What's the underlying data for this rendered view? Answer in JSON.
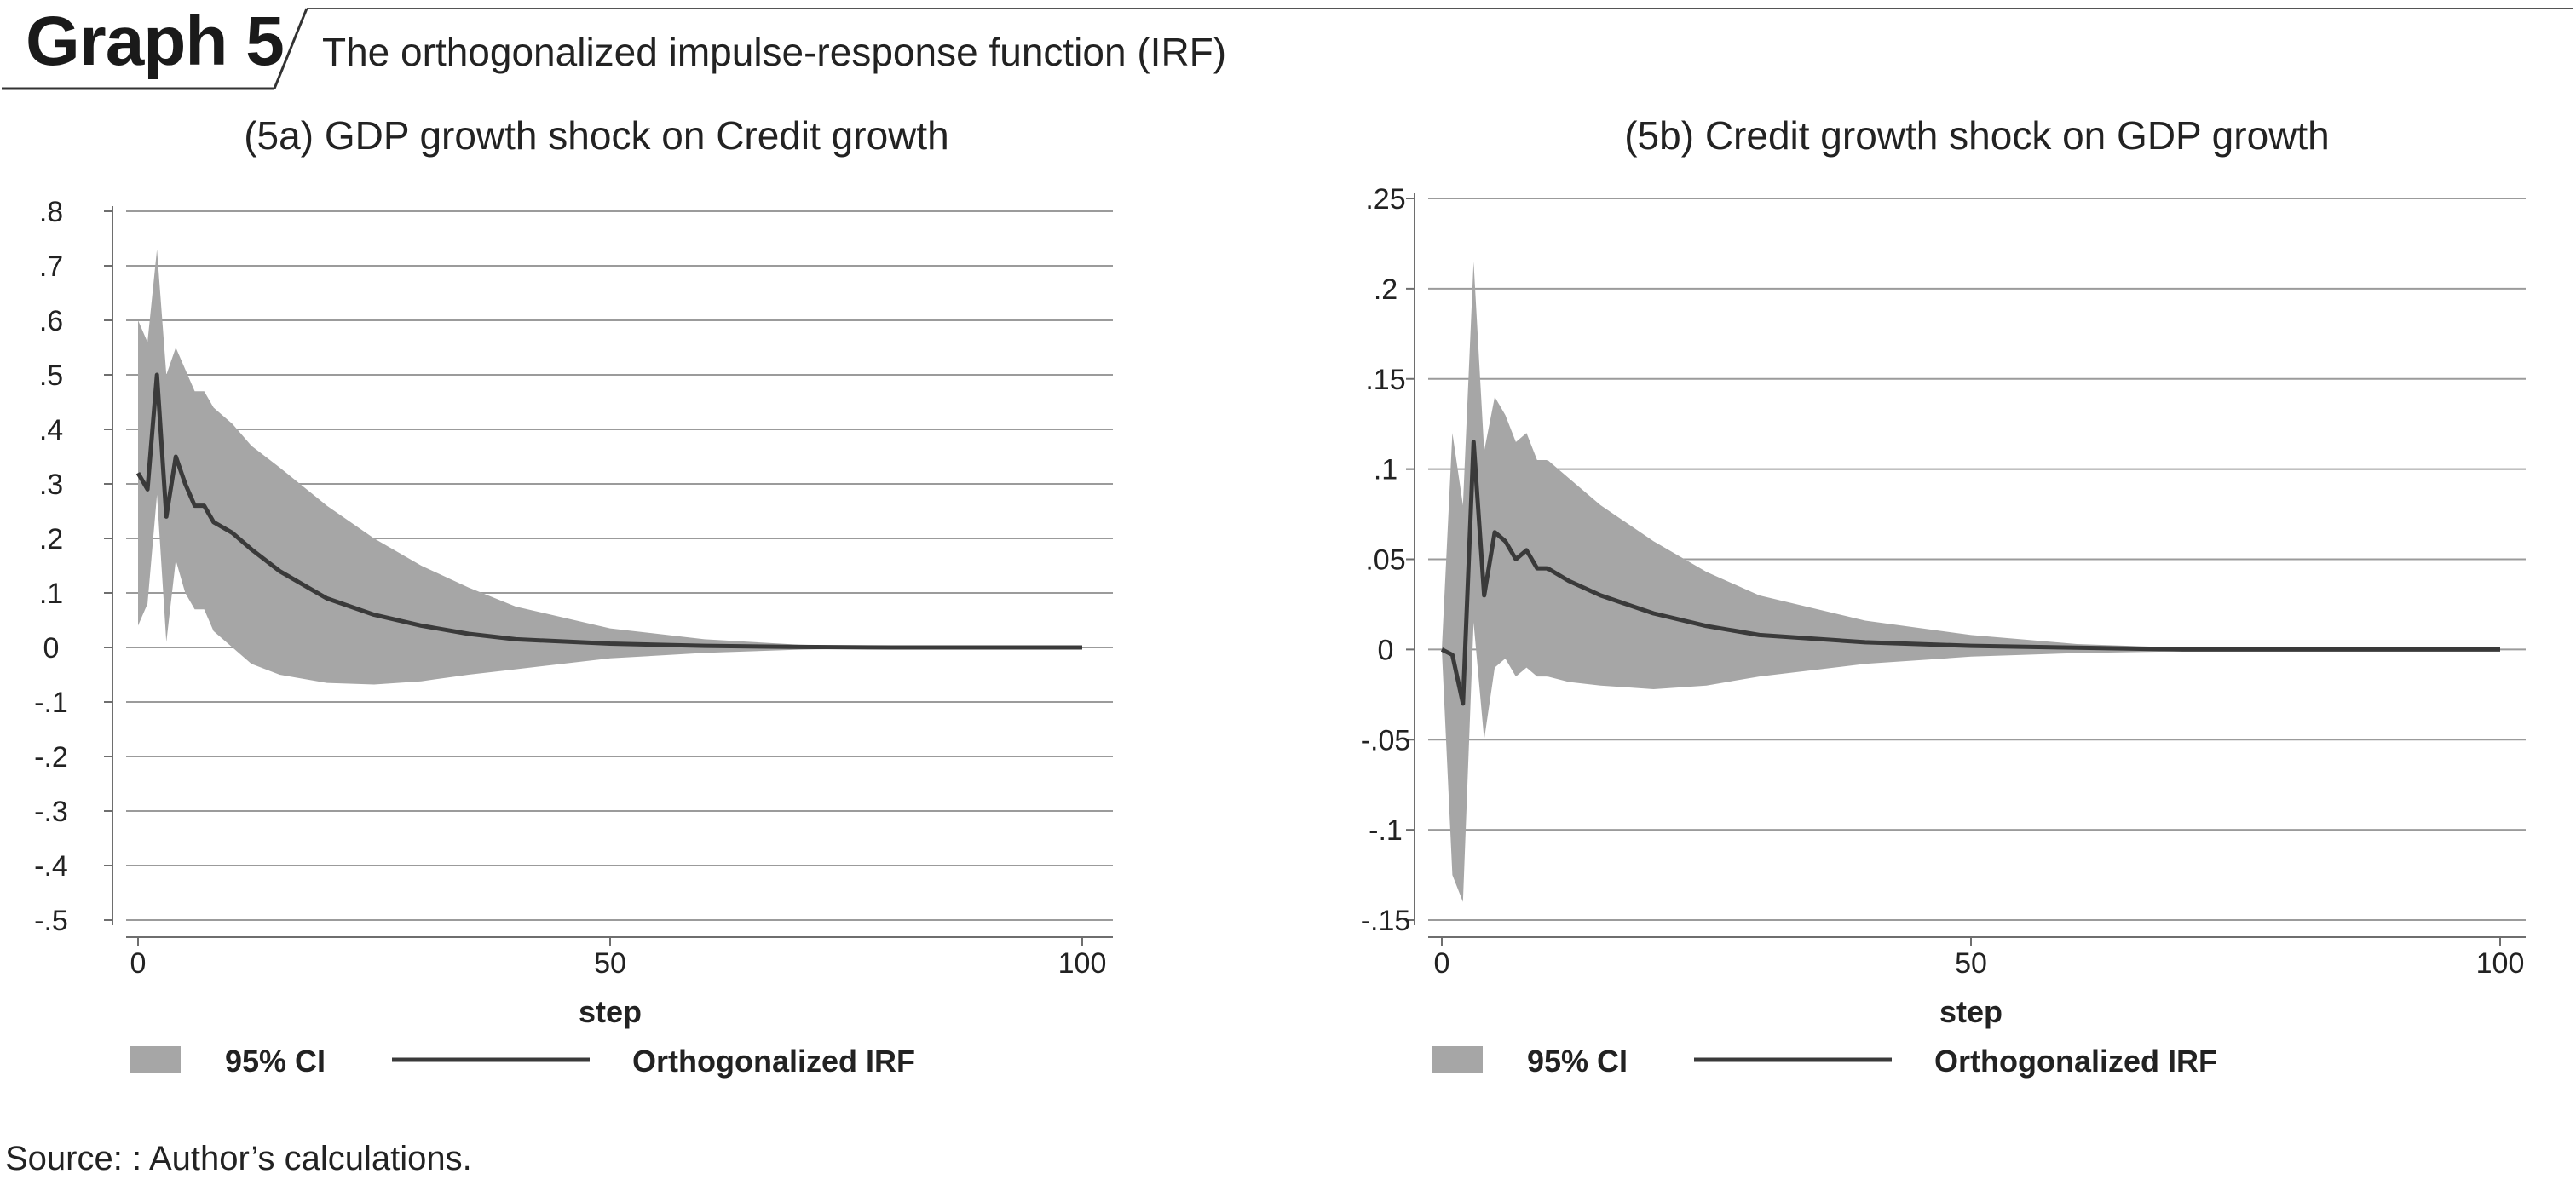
{
  "header": {
    "label": "Graph 5",
    "subtitle": "The orthogonalized impulse-response function (IRF)"
  },
  "source": "Source: : Author’s calculations.",
  "colors": {
    "band": "#a6a6a6",
    "line": "#3a3a3a",
    "grid": "#9b9b9b",
    "axis": "#6e6e6e",
    "text": "#222222"
  },
  "chart_data": [
    {
      "type": "area",
      "title": "(5a) GDP growth shock on Credit growth",
      "xlabel": "step",
      "ylabel": "",
      "xlim": [
        0,
        100
      ],
      "ylim": [
        -0.5,
        0.8
      ],
      "x_ticks": [
        0,
        50,
        100
      ],
      "x_tick_labels": [
        "0",
        "50",
        "100"
      ],
      "y_ticks": [
        -0.5,
        -0.4,
        -0.3,
        -0.2,
        -0.1,
        0,
        0.1,
        0.2,
        0.3,
        0.4,
        0.5,
        0.6,
        0.7,
        0.8
      ],
      "y_tick_labels": [
        "-.5",
        "-.4",
        "-.3",
        "-.2",
        "-.1",
        "0",
        ".1",
        ".2",
        ".3",
        ".4",
        ".5",
        ".6",
        ".7",
        ".8"
      ],
      "grid": true,
      "legend": {
        "position": "bottom",
        "entries": [
          {
            "label": "95% CI",
            "kind": "band"
          },
          {
            "label": "Orthogonalized IRF",
            "kind": "line"
          }
        ]
      },
      "series": [
        {
          "name": "Orthogonalized IRF",
          "kind": "line",
          "x": [
            0,
            1,
            2,
            3,
            4,
            5,
            6,
            7,
            8,
            10,
            12,
            15,
            20,
            25,
            30,
            35,
            40,
            50,
            60,
            70,
            80,
            90,
            100
          ],
          "y": [
            0.32,
            0.29,
            0.5,
            0.24,
            0.35,
            0.3,
            0.26,
            0.26,
            0.23,
            0.21,
            0.18,
            0.14,
            0.09,
            0.06,
            0.04,
            0.025,
            0.015,
            0.007,
            0.003,
            0.001,
            0.0,
            0.0,
            0.0
          ]
        },
        {
          "name": "95% CI",
          "kind": "band",
          "x": [
            0,
            1,
            2,
            3,
            4,
            5,
            6,
            7,
            8,
            10,
            12,
            15,
            20,
            25,
            30,
            35,
            40,
            50,
            60,
            70,
            80,
            90,
            100
          ],
          "upper": [
            0.6,
            0.56,
            0.73,
            0.5,
            0.55,
            0.51,
            0.47,
            0.47,
            0.44,
            0.41,
            0.37,
            0.33,
            0.26,
            0.2,
            0.15,
            0.11,
            0.075,
            0.035,
            0.015,
            0.005,
            0.001,
            0.0,
            0.0
          ],
          "lower": [
            0.04,
            0.08,
            0.28,
            0.01,
            0.16,
            0.1,
            0.07,
            0.07,
            0.03,
            0.0,
            -0.03,
            -0.05,
            -0.065,
            -0.068,
            -0.062,
            -0.05,
            -0.04,
            -0.02,
            -0.01,
            -0.004,
            -0.001,
            0.0,
            0.0
          ]
        }
      ]
    },
    {
      "type": "area",
      "title": "(5b) Credit growth shock on GDP growth",
      "xlabel": "step",
      "ylabel": "",
      "xlim": [
        0,
        100
      ],
      "ylim": [
        -0.15,
        0.25
      ],
      "x_ticks": [
        0,
        50,
        100
      ],
      "x_tick_labels": [
        "0",
        "50",
        "100"
      ],
      "y_ticks": [
        -0.15,
        -0.1,
        -0.05,
        0,
        0.05,
        0.1,
        0.15,
        0.2,
        0.25
      ],
      "y_tick_labels": [
        "-.15",
        "-.1",
        "-.05",
        "0",
        ".05",
        ".1",
        ".15",
        ".2",
        ".25"
      ],
      "grid": true,
      "legend": {
        "position": "bottom",
        "entries": [
          {
            "label": "95% CI",
            "kind": "band"
          },
          {
            "label": "Orthogonalized IRF",
            "kind": "line"
          }
        ]
      },
      "series": [
        {
          "name": "Orthogonalized IRF",
          "kind": "line",
          "x": [
            0,
            1,
            2,
            3,
            4,
            5,
            6,
            7,
            8,
            9,
            10,
            12,
            15,
            20,
            25,
            30,
            40,
            50,
            60,
            70,
            80,
            90,
            100
          ],
          "y": [
            0.0,
            -0.003,
            -0.03,
            0.115,
            0.03,
            0.065,
            0.06,
            0.05,
            0.055,
            0.045,
            0.045,
            0.038,
            0.03,
            0.02,
            0.013,
            0.008,
            0.004,
            0.002,
            0.001,
            0.0,
            0.0,
            0.0,
            0.0
          ]
        },
        {
          "name": "95% CI",
          "kind": "band",
          "x": [
            0,
            1,
            2,
            3,
            4,
            5,
            6,
            7,
            8,
            9,
            10,
            12,
            15,
            20,
            25,
            30,
            40,
            50,
            60,
            70,
            80,
            90,
            100
          ],
          "upper": [
            0.0,
            0.12,
            0.08,
            0.215,
            0.11,
            0.14,
            0.13,
            0.115,
            0.12,
            0.105,
            0.105,
            0.095,
            0.08,
            0.06,
            0.043,
            0.03,
            0.016,
            0.008,
            0.003,
            0.001,
            0.0,
            0.0,
            0.0
          ],
          "lower": [
            0.0,
            -0.125,
            -0.14,
            0.015,
            -0.05,
            -0.01,
            -0.005,
            -0.015,
            -0.01,
            -0.015,
            -0.015,
            -0.018,
            -0.02,
            -0.022,
            -0.02,
            -0.015,
            -0.008,
            -0.004,
            -0.002,
            -0.001,
            0.0,
            0.0,
            0.0
          ]
        }
      ]
    }
  ]
}
